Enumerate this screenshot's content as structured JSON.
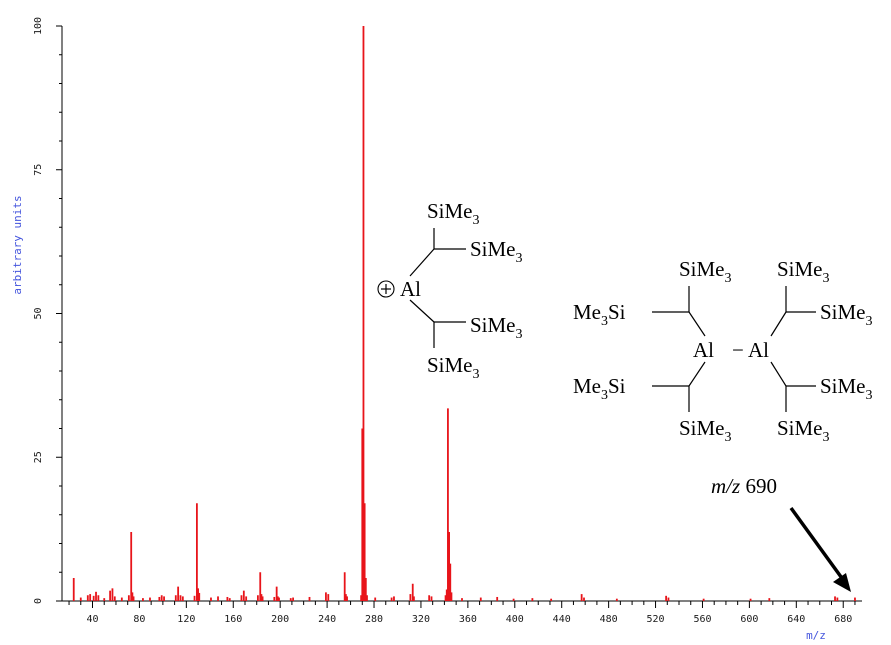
{
  "chart_data": {
    "type": "bar",
    "xlabel": "m/z",
    "ylabel": "arbitrary units",
    "xlim": [
      14,
      696
    ],
    "ylim": [
      0,
      100
    ],
    "x_ticks": [
      40,
      80,
      120,
      160,
      200,
      240,
      280,
      320,
      360,
      400,
      440,
      480,
      520,
      560,
      600,
      640,
      680
    ],
    "y_ticks": [
      0,
      25,
      50,
      75,
      100
    ],
    "bar_color": "#e8141a",
    "peaks": [
      {
        "x": 24,
        "y": 4.0
      },
      {
        "x": 30,
        "y": 0.6
      },
      {
        "x": 36,
        "y": 1.0
      },
      {
        "x": 38,
        "y": 1.2
      },
      {
        "x": 41,
        "y": 0.9
      },
      {
        "x": 43,
        "y": 1.6
      },
      {
        "x": 45,
        "y": 1.0
      },
      {
        "x": 50,
        "y": 0.5
      },
      {
        "x": 55,
        "y": 1.8
      },
      {
        "x": 57,
        "y": 2.2
      },
      {
        "x": 59,
        "y": 0.8
      },
      {
        "x": 65,
        "y": 0.6
      },
      {
        "x": 71,
        "y": 1.0
      },
      {
        "x": 73,
        "y": 12.0
      },
      {
        "x": 74,
        "y": 1.5
      },
      {
        "x": 75,
        "y": 0.8
      },
      {
        "x": 83,
        "y": 0.5
      },
      {
        "x": 89,
        "y": 0.6
      },
      {
        "x": 97,
        "y": 0.7
      },
      {
        "x": 99,
        "y": 1.0
      },
      {
        "x": 101,
        "y": 0.8
      },
      {
        "x": 111,
        "y": 1.0
      },
      {
        "x": 113,
        "y": 2.5
      },
      {
        "x": 115,
        "y": 1.0
      },
      {
        "x": 117,
        "y": 0.8
      },
      {
        "x": 127,
        "y": 0.9
      },
      {
        "x": 129,
        "y": 17.0
      },
      {
        "x": 130,
        "y": 2.2
      },
      {
        "x": 131,
        "y": 1.4
      },
      {
        "x": 141,
        "y": 0.6
      },
      {
        "x": 147,
        "y": 0.8
      },
      {
        "x": 155,
        "y": 0.7
      },
      {
        "x": 157,
        "y": 0.5
      },
      {
        "x": 167,
        "y": 1.0
      },
      {
        "x": 169,
        "y": 1.8
      },
      {
        "x": 171,
        "y": 0.8
      },
      {
        "x": 181,
        "y": 1.0
      },
      {
        "x": 183,
        "y": 5.0
      },
      {
        "x": 184,
        "y": 1.2
      },
      {
        "x": 185,
        "y": 0.8
      },
      {
        "x": 195,
        "y": 0.7
      },
      {
        "x": 197,
        "y": 2.5
      },
      {
        "x": 198,
        "y": 0.8
      },
      {
        "x": 199,
        "y": 0.6
      },
      {
        "x": 209,
        "y": 0.5
      },
      {
        "x": 211,
        "y": 0.6
      },
      {
        "x": 225,
        "y": 0.7
      },
      {
        "x": 239,
        "y": 1.5
      },
      {
        "x": 241,
        "y": 1.2
      },
      {
        "x": 255,
        "y": 5.0
      },
      {
        "x": 256,
        "y": 1.2
      },
      {
        "x": 257,
        "y": 0.8
      },
      {
        "x": 269,
        "y": 1.0
      },
      {
        "x": 270,
        "y": 30.0
      },
      {
        "x": 271,
        "y": 100.0
      },
      {
        "x": 272,
        "y": 17.0
      },
      {
        "x": 273,
        "y": 4.0
      },
      {
        "x": 274,
        "y": 1.0
      },
      {
        "x": 281,
        "y": 0.6
      },
      {
        "x": 295,
        "y": 0.6
      },
      {
        "x": 297,
        "y": 0.8
      },
      {
        "x": 311,
        "y": 1.2
      },
      {
        "x": 313,
        "y": 3.0
      },
      {
        "x": 314,
        "y": 0.8
      },
      {
        "x": 327,
        "y": 1.0
      },
      {
        "x": 329,
        "y": 0.8
      },
      {
        "x": 341,
        "y": 1.0
      },
      {
        "x": 342,
        "y": 2.0
      },
      {
        "x": 343,
        "y": 33.5
      },
      {
        "x": 344,
        "y": 12.0
      },
      {
        "x": 345,
        "y": 6.5
      },
      {
        "x": 346,
        "y": 1.5
      },
      {
        "x": 355,
        "y": 0.5
      },
      {
        "x": 371,
        "y": 0.6
      },
      {
        "x": 385,
        "y": 0.7
      },
      {
        "x": 399,
        "y": 0.4
      },
      {
        "x": 415,
        "y": 0.5
      },
      {
        "x": 431,
        "y": 0.4
      },
      {
        "x": 457,
        "y": 1.2
      },
      {
        "x": 459,
        "y": 0.6
      },
      {
        "x": 487,
        "y": 0.4
      },
      {
        "x": 529,
        "y": 0.9
      },
      {
        "x": 531,
        "y": 0.6
      },
      {
        "x": 561,
        "y": 0.4
      },
      {
        "x": 601,
        "y": 0.4
      },
      {
        "x": 617,
        "y": 0.5
      },
      {
        "x": 673,
        "y": 0.8
      },
      {
        "x": 675,
        "y": 0.6
      },
      {
        "x": 690,
        "y": 0.6
      }
    ]
  },
  "annotation": {
    "arrow_label_italic": "m/z",
    "arrow_label_value": "690"
  },
  "structure_labels": {
    "si": "SiMe",
    "si_left": "Me",
    "si_left_tail": "Si",
    "sub": "3",
    "al": "Al",
    "plus": "+",
    "bond_dash": "−"
  }
}
